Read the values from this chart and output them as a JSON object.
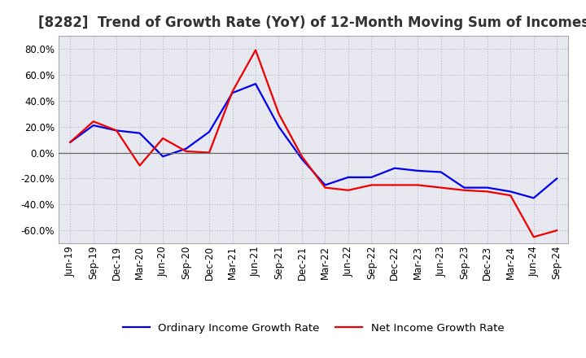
{
  "title": "[8282]  Trend of Growth Rate (YoY) of 12-Month Moving Sum of Incomes",
  "x_labels": [
    "Jun-19",
    "Sep-19",
    "Dec-19",
    "Mar-20",
    "Jun-20",
    "Sep-20",
    "Dec-20",
    "Mar-21",
    "Jun-21",
    "Sep-21",
    "Dec-21",
    "Mar-22",
    "Jun-22",
    "Sep-22",
    "Dec-22",
    "Mar-23",
    "Jun-23",
    "Sep-23",
    "Dec-23",
    "Mar-24",
    "Jun-24",
    "Sep-24"
  ],
  "ordinary_income": [
    8.0,
    21.0,
    17.0,
    15.0,
    -3.0,
    3.0,
    16.0,
    46.0,
    53.0,
    20.0,
    -5.0,
    -25.0,
    -19.0,
    -19.0,
    -12.0,
    -14.0,
    -15.0,
    -27.0,
    -27.0,
    -30.0,
    -35.0,
    -20.0
  ],
  "net_income": [
    8.0,
    24.0,
    17.0,
    -10.0,
    11.0,
    1.0,
    0.0,
    47.0,
    79.0,
    30.0,
    -3.0,
    -27.0,
    -29.0,
    -25.0,
    -25.0,
    -25.0,
    -27.0,
    -29.0,
    -30.0,
    -33.0,
    -65.0,
    -60.0
  ],
  "ordinary_color": "#0000EE",
  "net_color": "#EE0000",
  "ylim": [
    -70,
    90
  ],
  "yticks": [
    -60,
    -40,
    -20,
    0,
    20,
    40,
    60,
    80
  ],
  "background_color": "#FFFFFF",
  "plot_background": "#E8E8F0",
  "grid_color": "#BBBBCC",
  "zero_line_color": "#666666",
  "legend_labels": [
    "Ordinary Income Growth Rate",
    "Net Income Growth Rate"
  ],
  "title_fontsize": 12,
  "tick_fontsize": 8.5,
  "legend_fontsize": 9.5,
  "line_width": 1.6
}
